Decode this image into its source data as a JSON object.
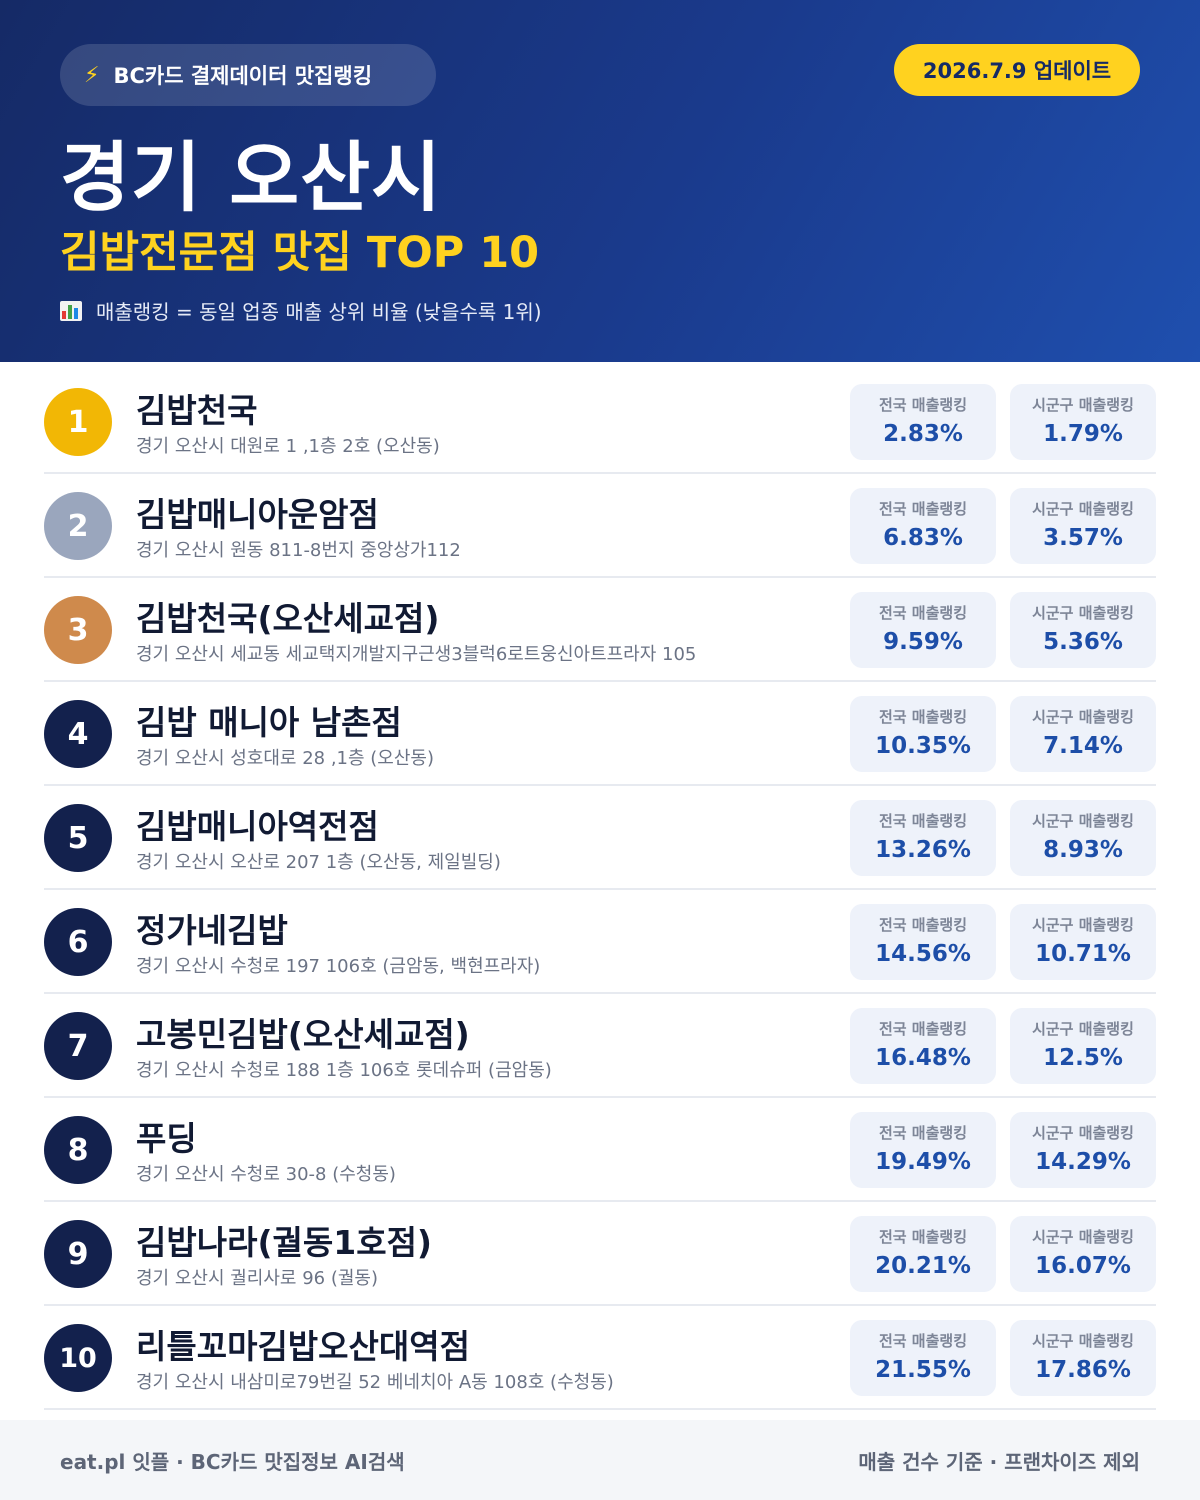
{
  "header": {
    "source_label": "BC카드 결제데이터 맛집랭킹",
    "source_icon": "lightning-icon",
    "update_label": "2026.7.9 업데이트",
    "region": "경기 오산시",
    "category_title": "김밥전문점 맛집 TOP 10",
    "legend_icon": "bar-chart-icon",
    "legend_note": "매출랭킹 = 동일 업종 매출 상위 비율 (낮을수록 1위)"
  },
  "colors": {
    "header_bg": "#1a3a8c",
    "accent_yellow": "#ffd21f",
    "gold": "#f2b705",
    "silver": "#9aa6bd",
    "bronze": "#cf8a4c",
    "navy": "#13214d",
    "value_blue": "#1d4ea8"
  },
  "labels": {
    "national": "전국 매출랭킹",
    "local": "시군구 매출랭킹"
  },
  "restaurants": [
    {
      "rank": "1",
      "name": "김밥천국",
      "address": "경기 오산시 대원로 1 ,1층 2호 (오산동)",
      "national": "2.83%",
      "local": "1.79%"
    },
    {
      "rank": "2",
      "name": "김밥매니아운암점",
      "address": "경기 오산시 원동 811-8번지 중앙상가112",
      "national": "6.83%",
      "local": "3.57%"
    },
    {
      "rank": "3",
      "name": "김밥천국(오산세교점)",
      "address": "경기 오산시 세교동 세교택지개발지구근생3블럭6로트웅신아트프라자 105",
      "national": "9.59%",
      "local": "5.36%"
    },
    {
      "rank": "4",
      "name": "김밥 매니아 남촌점",
      "address": "경기 오산시 성호대로 28 ,1층 (오산동)",
      "national": "10.35%",
      "local": "7.14%"
    },
    {
      "rank": "5",
      "name": "김밥매니아역전점",
      "address": "경기 오산시 오산로 207 1층 (오산동, 제일빌딩)",
      "national": "13.26%",
      "local": "8.93%"
    },
    {
      "rank": "6",
      "name": "정가네김밥",
      "address": "경기 오산시 수청로 197 106호 (금암동, 백현프라자)",
      "national": "14.56%",
      "local": "10.71%"
    },
    {
      "rank": "7",
      "name": "고봉민김밥(오산세교점)",
      "address": "경기 오산시 수청로 188 1층 106호 롯데슈퍼 (금암동)",
      "national": "16.48%",
      "local": "12.5%"
    },
    {
      "rank": "8",
      "name": "푸딩",
      "address": "경기 오산시 수청로 30-8 (수청동)",
      "national": "19.49%",
      "local": "14.29%"
    },
    {
      "rank": "9",
      "name": "김밥나라(궐동1호점)",
      "address": "경기 오산시 궐리사로 96 (궐동)",
      "national": "20.21%",
      "local": "16.07%"
    },
    {
      "rank": "10",
      "name": "리틀꼬마김밥오산대역점",
      "address": "경기 오산시 내삼미로79번길 52 베네치아 A동 108호 (수청동)",
      "national": "21.55%",
      "local": "17.86%"
    }
  ],
  "footer": {
    "left": "eat.pl 잇플 · BC카드 맛집정보 AI검색",
    "right": "매출 건수 기준 · 프랜차이즈 제외"
  }
}
